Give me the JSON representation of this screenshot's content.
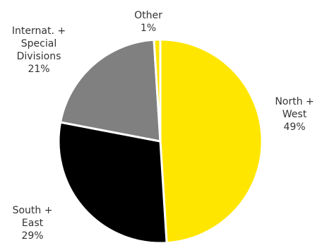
{
  "chart_data": {
    "type": "pie",
    "slices": [
      {
        "label_lines": [
          "North +",
          "West"
        ],
        "value": 49,
        "value_label": "49%",
        "color": "#FFE600"
      },
      {
        "label_lines": [
          "South +",
          "East"
        ],
        "value": 29,
        "value_label": "29%",
        "color": "#000000"
      },
      {
        "label_lines": [
          "Internat. +",
          "Special",
          "Divisions"
        ],
        "value": 21,
        "value_label": "21%",
        "color": "#808080"
      },
      {
        "label_lines": [
          "Other"
        ],
        "value": 1,
        "value_label": "1%",
        "color": "#FFE600"
      }
    ],
    "start_angle": "12 o'clock",
    "direction": "clockwise",
    "legend": "none"
  }
}
